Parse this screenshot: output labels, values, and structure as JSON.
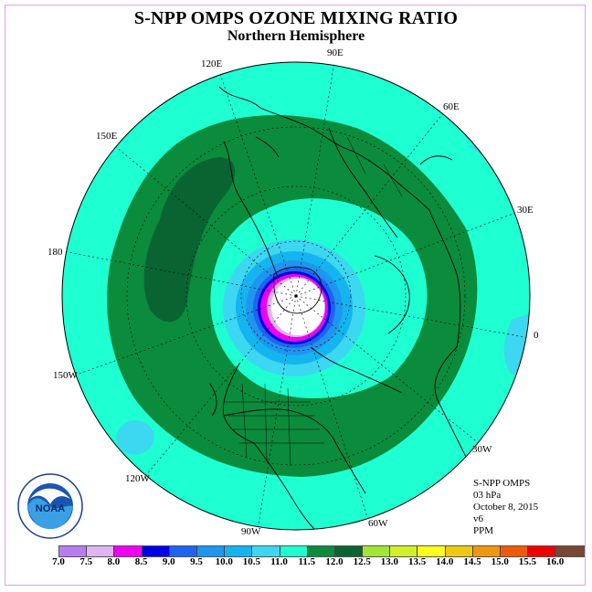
{
  "title": "S-NPP OMPS OZONE MIXING RATIO",
  "subtitle": "Northern Hemisphere",
  "longitude_labels": [
    "90E",
    "60E",
    "30E",
    "0",
    "30W",
    "60W",
    "90W",
    "120W",
    "150W",
    "180",
    "150E",
    "120E"
  ],
  "info": {
    "instrument": "S-NPP OMPS",
    "level": "03 hPa",
    "date": "October 8, 2015",
    "version": "v6",
    "units": "PPM"
  },
  "logo": {
    "text": "NOAA",
    "icon": "noaa-logo"
  },
  "colorbar": {
    "ticks": [
      "7.0",
      "7.5",
      "8.0",
      "8.5",
      "9.0",
      "9.5",
      "10.0",
      "10.5",
      "11.0",
      "11.5",
      "12.0",
      "12.5",
      "13.0",
      "13.5",
      "14.0",
      "14.5",
      "15.0",
      "15.5",
      "16.0"
    ],
    "colors": [
      "#b87cf0",
      "#e0b4f0",
      "#f000f0",
      "#0000e6",
      "#1e64f0",
      "#1e96f0",
      "#14b4f0",
      "#3cd7f0",
      "#1effd2",
      "#0a8c3c",
      "#0a6432",
      "#a0e632",
      "#d2f028",
      "#ffff1e",
      "#f0c814",
      "#f0960f",
      "#f05a0a",
      "#f00000",
      "#784632"
    ]
  }
}
